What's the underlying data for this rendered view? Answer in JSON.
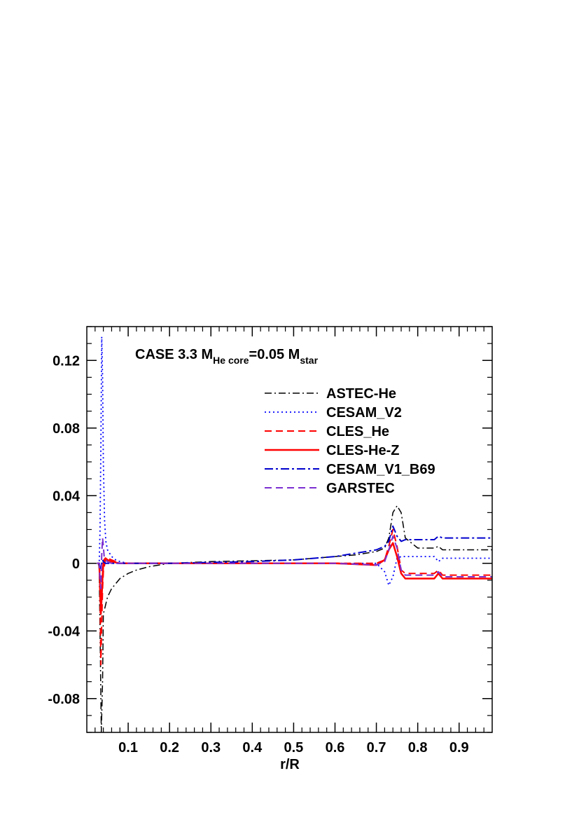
{
  "chart_data": {
    "type": "line",
    "title": {
      "prefix": "CASE 3.3 M",
      "sub1": "He core",
      "mid": "=0.05 M",
      "sub2": "star"
    },
    "xlabel": "r/R",
    "ylabel": "",
    "xlim": [
      0.0,
      0.98
    ],
    "ylim": [
      -0.1,
      0.14
    ],
    "xticks": [
      0.1,
      0.2,
      0.3,
      0.4,
      0.5,
      0.6,
      0.7,
      0.8,
      0.9
    ],
    "xtick_labels": [
      "0.1",
      "0.2",
      "0.3",
      "0.4",
      "0.5",
      "0.6",
      "0.7",
      "0.8",
      "0.9"
    ],
    "yticks": [
      0.12,
      0.08,
      0.04,
      0,
      -0.04,
      -0.08
    ],
    "ytick_labels": [
      "0.12",
      "0.08",
      "0.04",
      "0",
      "-0.04",
      "-0.08"
    ],
    "grid": false,
    "legend_position": "top-right",
    "series": [
      {
        "name": "ASTEC-He",
        "color": "#000000",
        "dash": "10,4,2,4",
        "width": 1.5,
        "x": [
          0.025,
          0.028,
          0.03,
          0.033,
          0.035,
          0.038,
          0.04,
          0.045,
          0.05,
          0.06,
          0.07,
          0.08,
          0.1,
          0.12,
          0.15,
          0.2,
          0.25,
          0.3,
          0.4,
          0.5,
          0.6,
          0.65,
          0.7,
          0.72,
          0.73,
          0.74,
          0.75,
          0.76,
          0.77,
          0.8,
          0.84,
          0.85,
          0.86,
          0.9,
          0.98
        ],
        "y": [
          0,
          0,
          -0.003,
          -0.06,
          -0.1,
          -0.07,
          -0.03,
          -0.025,
          -0.02,
          -0.015,
          -0.012,
          -0.009,
          -0.006,
          -0.004,
          -0.002,
          0,
          0.0005,
          0.001,
          0.0015,
          0.002,
          0.004,
          0.005,
          0.007,
          0.009,
          0.015,
          0.03,
          0.034,
          0.03,
          0.015,
          0.009,
          0.009,
          0.01,
          0.008,
          0.008,
          0.008
        ]
      },
      {
        "name": "CESAM_V2",
        "color": "#0000ff",
        "dash": "2,4",
        "width": 1.8,
        "x": [
          0.025,
          0.03,
          0.032,
          0.034,
          0.036,
          0.038,
          0.04,
          0.043,
          0.046,
          0.05,
          0.06,
          0.07,
          0.08,
          0.1,
          0.15,
          0.2,
          0.4,
          0.6,
          0.7,
          0.72,
          0.73,
          0.74,
          0.75,
          0.76,
          0.77,
          0.8,
          0.84,
          0.85,
          0.86,
          0.9,
          0.98
        ],
        "y": [
          0,
          0,
          0.02,
          0.07,
          0.134,
          0.11,
          0.06,
          0.025,
          0.013,
          0.008,
          0.004,
          0.002,
          0.001,
          0,
          0,
          0,
          0,
          0,
          0,
          -0.005,
          -0.013,
          -0.008,
          0.003,
          0.004,
          0.004,
          0.004,
          0.004,
          0.001,
          0.003,
          0.003,
          0.003
        ]
      },
      {
        "name": "CLES_He",
        "color": "#ff0000",
        "dash": "10,6",
        "width": 2,
        "x": [
          0.025,
          0.03,
          0.032,
          0.034,
          0.036,
          0.038,
          0.04,
          0.045,
          0.05,
          0.06,
          0.08,
          0.1,
          0.2,
          0.4,
          0.6,
          0.7,
          0.72,
          0.73,
          0.74,
          0.75,
          0.76,
          0.77,
          0.8,
          0.84,
          0.85,
          0.86,
          0.9,
          0.98
        ],
        "y": [
          0,
          0,
          -0.02,
          -0.06,
          -0.035,
          -0.015,
          -0.005,
          0.002,
          0.003,
          0.002,
          0,
          0,
          0,
          0,
          0,
          0,
          0.002,
          0.01,
          0.02,
          0.01,
          -0.004,
          -0.006,
          -0.006,
          -0.006,
          -0.004,
          -0.007,
          -0.007,
          -0.007
        ]
      },
      {
        "name": "CLES-He-Z",
        "color": "#ff0000",
        "dash": "",
        "width": 2.5,
        "x": [
          0.025,
          0.03,
          0.032,
          0.034,
          0.036,
          0.038,
          0.04,
          0.042,
          0.045,
          0.05,
          0.06,
          0.08,
          0.1,
          0.2,
          0.4,
          0.6,
          0.7,
          0.72,
          0.73,
          0.74,
          0.75,
          0.76,
          0.77,
          0.8,
          0.84,
          0.85,
          0.86,
          0.9,
          0.98
        ],
        "y": [
          0,
          0,
          -0.012,
          -0.03,
          -0.02,
          -0.008,
          0,
          0.002,
          0.003,
          0.002,
          0.001,
          0,
          0,
          0,
          0,
          0,
          -0.001,
          0.002,
          0.008,
          0.012,
          0.004,
          -0.006,
          -0.009,
          -0.009,
          -0.009,
          -0.006,
          -0.009,
          -0.009,
          -0.009
        ]
      },
      {
        "name": "CESAM_V1_B69",
        "color": "#0000cd",
        "dash": "12,4,3,4",
        "width": 2,
        "x": [
          0.025,
          0.03,
          0.032,
          0.034,
          0.036,
          0.038,
          0.04,
          0.045,
          0.05,
          0.06,
          0.08,
          0.1,
          0.2,
          0.3,
          0.4,
          0.5,
          0.6,
          0.65,
          0.7,
          0.72,
          0.73,
          0.74,
          0.75,
          0.76,
          0.77,
          0.8,
          0.84,
          0.85,
          0.86,
          0.9,
          0.98
        ],
        "y": [
          0,
          0,
          -0.002,
          -0.003,
          0,
          0.002,
          0.001,
          0,
          0,
          0,
          0,
          0,
          0,
          0.0005,
          0.001,
          0.002,
          0.004,
          0.006,
          0.008,
          0.01,
          0.013,
          0.022,
          0.016,
          0.013,
          0.014,
          0.014,
          0.014,
          0.016,
          0.015,
          0.015,
          0.015
        ]
      },
      {
        "name": "GARSTEC",
        "color": "#7b2fd0",
        "dash": "10,6",
        "width": 2,
        "x": [
          0.025,
          0.03,
          0.032,
          0.034,
          0.036,
          0.038,
          0.04,
          0.042,
          0.045,
          0.05,
          0.06,
          0.08,
          0.1,
          0.2,
          0.4,
          0.6,
          0.7,
          0.72,
          0.73,
          0.74,
          0.75,
          0.76,
          0.77,
          0.8,
          0.84,
          0.85,
          0.86,
          0.9,
          0.98
        ],
        "y": [
          0,
          0,
          -0.01,
          -0.015,
          0.005,
          0.015,
          0.01,
          0.004,
          0.002,
          0.001,
          0,
          0,
          0,
          0,
          0,
          0,
          -0.001,
          0.001,
          0.008,
          0.016,
          0.009,
          -0.004,
          -0.007,
          -0.007,
          -0.007,
          -0.005,
          -0.008,
          -0.008,
          -0.008
        ]
      }
    ]
  }
}
